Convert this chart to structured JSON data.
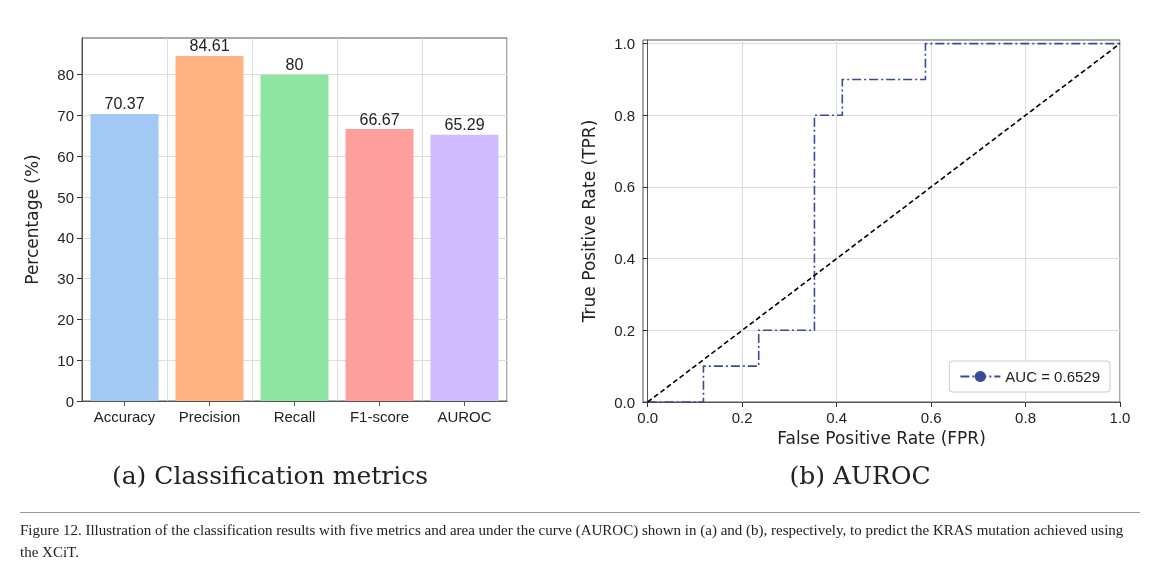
{
  "chart_data": [
    {
      "type": "bar",
      "title": "(a) Classification metrics",
      "ylabel": "Percentage (%)",
      "categories": [
        "Accuracy",
        "Precision",
        "Recall",
        "F1-score",
        "AUROC"
      ],
      "values": [
        70.37,
        84.61,
        80,
        66.67,
        65.29
      ],
      "colors": [
        "#a1c9f4",
        "#ffb482",
        "#8de5a1",
        "#ff9f9b",
        "#d0bbff"
      ],
      "data_labels": true,
      "ylim": [
        0,
        89
      ],
      "yticks": [
        0,
        10,
        20,
        30,
        40,
        50,
        60,
        70,
        80
      ],
      "grid": true,
      "annotations": [
        "Figure 12. Illustration of the classification results with five metrics and area under the curve (AUROC) shown in (a) and (b), respectively, to predict the KRAS mutation achieved using the XCiT."
      ]
    },
    {
      "type": "line",
      "title": "(b) AUROC",
      "xlabel": "False Positive Rate (FPR)",
      "ylabel": "True Positive Rate (TPR)",
      "xlim": [
        -0.01,
        1.0
      ],
      "xticks": [
        {
          "value": 0,
          "label": "0.0"
        },
        0.2,
        0.4,
        0.6,
        0.8,
        {
          "value": 1,
          "label": "1.0"
        }
      ],
      "ylim": [
        0,
        1.01
      ],
      "yticks": [
        {
          "value": 0,
          "label": "0.0"
        },
        0.2,
        0.4,
        0.6,
        0.8,
        {
          "value": 1,
          "label": "1.0"
        }
      ],
      "grid": true,
      "legend": "bottom right",
      "marker": "none",
      "series": [
        {
          "name": "AUC = 0.6529",
          "color": "#3a4a9a",
          "line_style": "dashdot",
          "x": [
            0,
            0.118,
            0.118,
            0.235,
            0.235,
            0.353,
            0.353,
            0.412,
            0.412,
            0.588,
            0.588,
            1.0
          ],
          "values": [
            0,
            0,
            0.1,
            0.1,
            0.2,
            0.2,
            0.8,
            0.8,
            0.9,
            0.9,
            1.0,
            1.0
          ]
        },
        {
          "color": "#000000",
          "line_style": "dashed",
          "x": [
            0,
            1
          ],
          "values": [
            0,
            1
          ]
        }
      ]
    }
  ]
}
